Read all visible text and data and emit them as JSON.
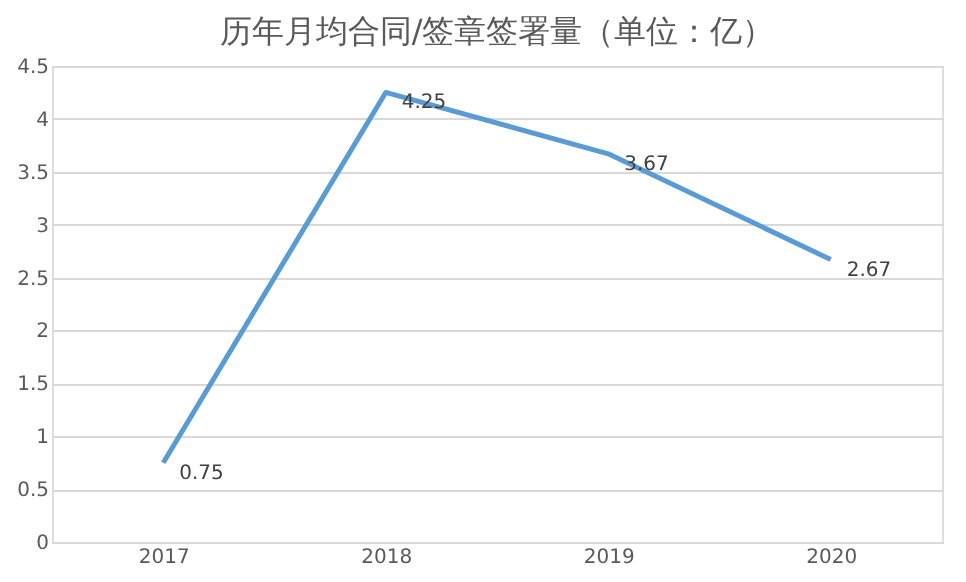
{
  "chart_data": {
    "type": "line",
    "title": "历年月均合同/签章签署量（单位：亿）",
    "categories": [
      "2017",
      "2018",
      "2019",
      "2020"
    ],
    "series": [
      {
        "color": "#5b9bd5",
        "values": [
          0.75,
          4.25,
          3.67,
          2.67
        ]
      }
    ],
    "ylim": [
      0,
      4.5
    ],
    "yticks": [
      0,
      0.5,
      1,
      1.5,
      2,
      2.5,
      3,
      3.5,
      4,
      4.5
    ],
    "grid": "y",
    "data_labels": true,
    "marker": "none",
    "line_style": "solid"
  }
}
